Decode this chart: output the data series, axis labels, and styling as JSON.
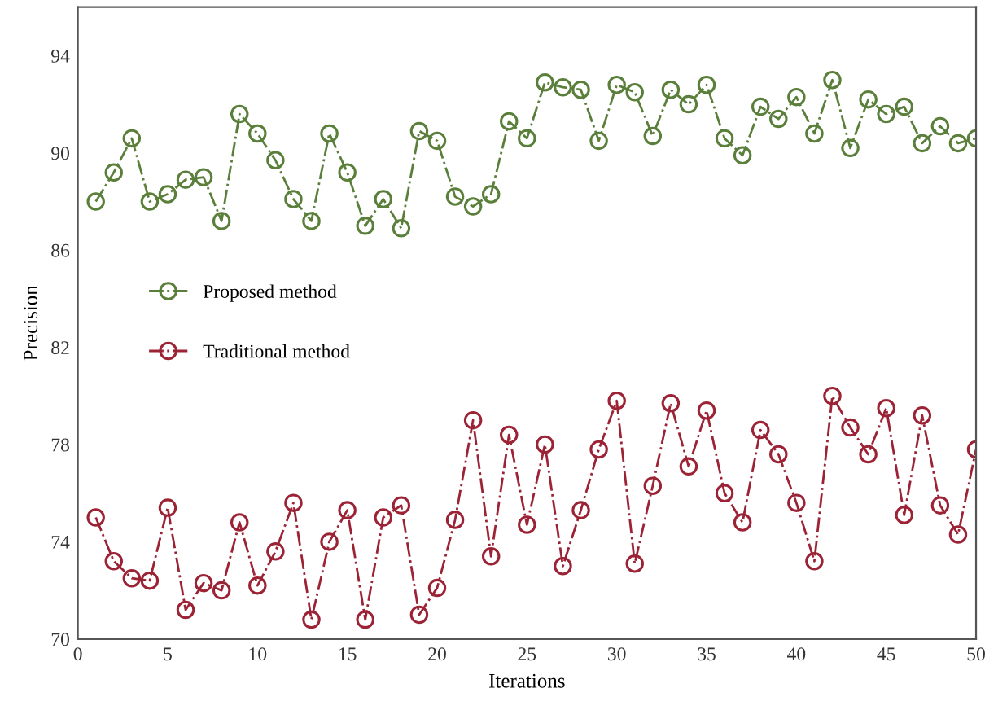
{
  "chart_data": {
    "type": "line",
    "xlabel": "Iterations",
    "ylabel": "Precision",
    "x": [
      1,
      2,
      3,
      4,
      5,
      6,
      7,
      8,
      9,
      10,
      11,
      12,
      13,
      14,
      15,
      16,
      17,
      18,
      19,
      20,
      21,
      22,
      23,
      24,
      25,
      26,
      27,
      28,
      29,
      30,
      31,
      32,
      33,
      34,
      35,
      36,
      37,
      38,
      39,
      40,
      41,
      42,
      43,
      44,
      45,
      46,
      47,
      48,
      49,
      50
    ],
    "series": [
      {
        "name": "Proposed method",
        "color": "#5a7f3a",
        "values": [
          88.0,
          89.2,
          90.6,
          88.0,
          88.3,
          88.9,
          89.0,
          87.2,
          91.6,
          90.8,
          89.7,
          88.1,
          87.2,
          90.8,
          89.2,
          87.0,
          88.1,
          86.9,
          90.9,
          90.5,
          88.2,
          87.8,
          88.3,
          91.3,
          90.6,
          92.9,
          92.7,
          92.6,
          90.5,
          92.8,
          92.5,
          90.7,
          92.6,
          92.0,
          92.8,
          90.6,
          89.9,
          91.9,
          91.4,
          92.3,
          90.8,
          93.0,
          90.2,
          92.2,
          91.6,
          91.9,
          90.4,
          91.1,
          90.4,
          90.6
        ]
      },
      {
        "name": "Traditional method",
        "color": "#9b2335",
        "values": [
          75.0,
          73.2,
          72.5,
          72.4,
          75.4,
          71.2,
          72.3,
          72.0,
          74.8,
          72.2,
          73.6,
          75.6,
          70.8,
          74.0,
          75.3,
          70.8,
          75.0,
          75.5,
          71.0,
          72.1,
          74.9,
          79.0,
          73.4,
          78.4,
          74.7,
          78.0,
          73.0,
          75.3,
          77.8,
          79.8,
          73.1,
          76.3,
          79.7,
          77.1,
          79.4,
          76.0,
          74.8,
          78.6,
          77.6,
          75.6,
          73.2,
          80.0,
          78.7,
          77.6,
          79.5,
          75.1,
          79.2,
          75.5,
          74.3,
          77.8
        ]
      }
    ],
    "xlim": [
      0,
      50
    ],
    "xticks": [
      0,
      5,
      10,
      15,
      20,
      25,
      30,
      35,
      40,
      45,
      50
    ],
    "ylim": [
      70,
      96
    ],
    "yticks": [
      70,
      74,
      78,
      82,
      86,
      90,
      94
    ],
    "marker": "circle",
    "line_style": "dashed",
    "legend": "center left",
    "grid": false
  }
}
